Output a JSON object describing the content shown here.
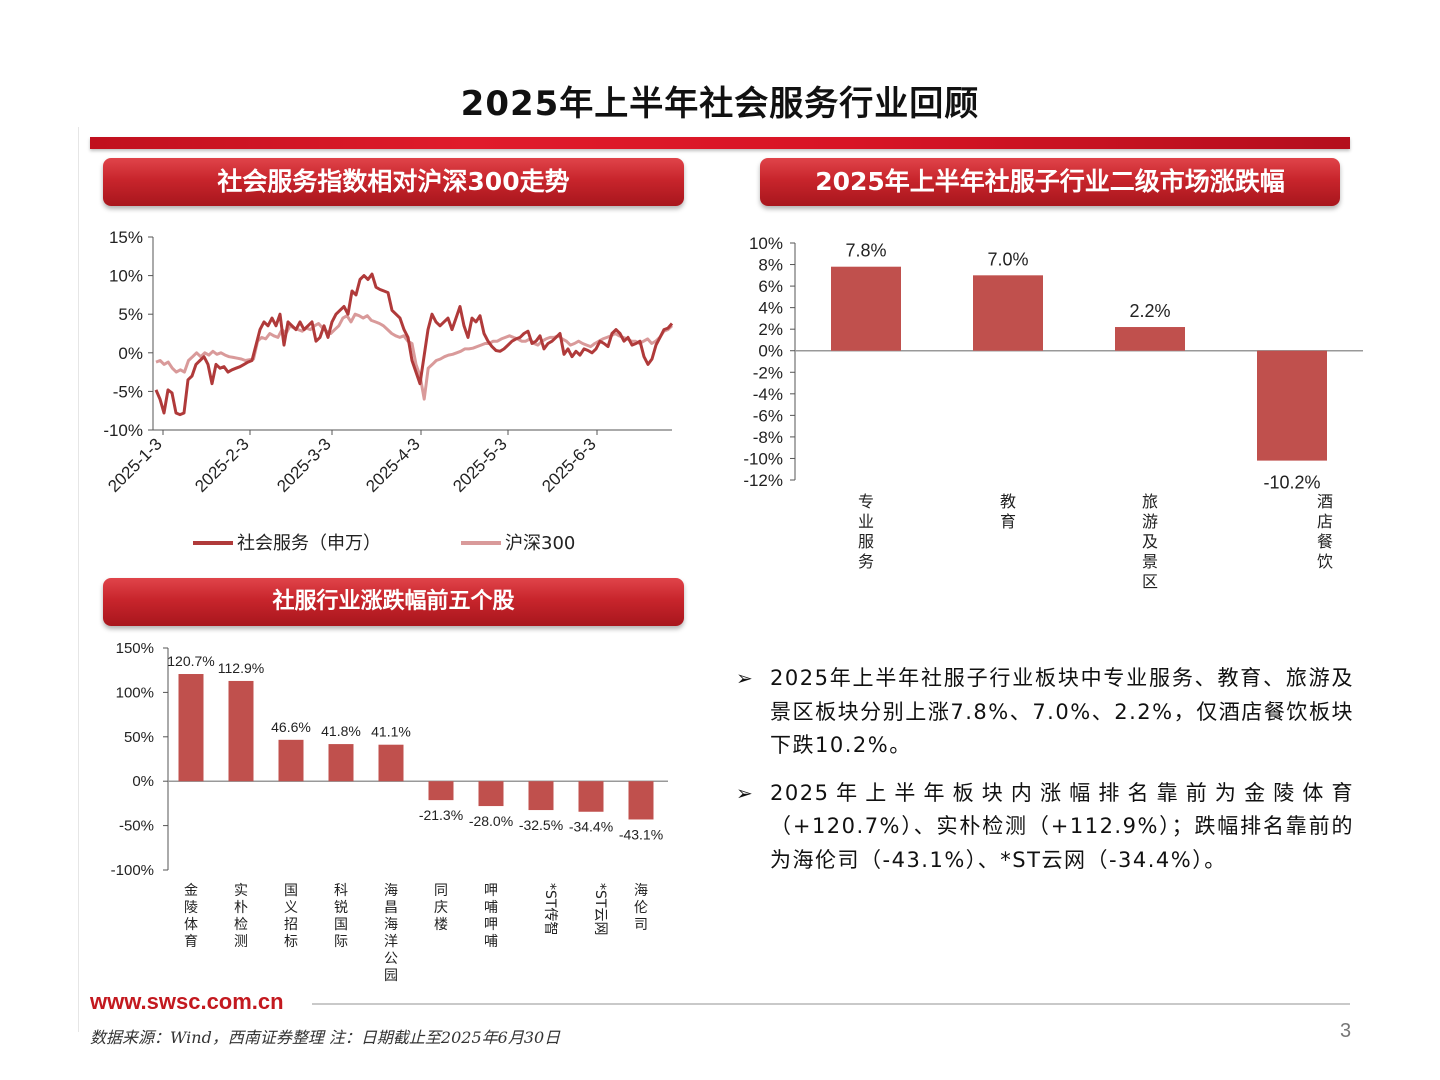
{
  "page_title": "2025年上半年社会服务行业回顾",
  "sections": {
    "index_trend": "社会服务指数相对沪深300走势",
    "sub_industry": "2025年上半年社服子行业二级市场涨跌幅",
    "top_stocks": "社服行业涨跌幅前五个股"
  },
  "chart_data": [
    {
      "type": "line",
      "y_ticks": [
        "15%",
        "10%",
        "5%",
        "0%",
        "-5%",
        "-10%"
      ],
      "ylim": [
        -10,
        15
      ],
      "x_ticks": [
        "2025-1-3",
        "2025-2-3",
        "2025-3-3",
        "2025-4-3",
        "2025-5-3",
        "2025-6-3"
      ],
      "series": [
        {
          "name": "社会服务（申万）",
          "color": "#b03a3a",
          "values": [
            -4.8,
            -6,
            -7.8,
            -4.8,
            -5.2,
            -7.8,
            -8,
            -7.8,
            -3.5,
            -3,
            -1.5,
            -1,
            -0.5,
            -1.5,
            -4,
            -1.5,
            -2,
            -1.8,
            -2.5,
            -2.2,
            -2,
            -1.8,
            -1.5,
            -1.2,
            -1,
            1,
            3,
            4,
            3.5,
            4.5,
            3.5,
            5,
            1,
            4,
            3.5,
            3,
            4,
            3,
            3.5,
            4,
            1.5,
            2,
            3.5,
            2,
            4,
            5,
            5.5,
            6,
            5,
            8,
            7.5,
            9.5,
            10,
            9.5,
            10.2,
            8.5,
            8.2,
            8,
            7.8,
            5.5,
            5,
            4.5,
            3,
            2,
            -1,
            -2.5,
            -4,
            -0.5,
            3,
            5,
            4,
            3.5,
            4,
            4.5,
            3,
            4.5,
            6,
            3.5,
            2,
            4.5,
            4,
            4.8,
            2.5,
            1.5,
            0.8,
            0.3,
            0.2,
            0.5,
            1,
            1.5,
            1.8,
            2,
            2.5,
            2.8,
            1.2,
            1.5,
            2.2,
            0.5,
            1.2,
            1.5,
            2,
            2.5,
            -0.2,
            0.5,
            -0.5,
            0.2,
            -0.3,
            0.5,
            0.3,
            0,
            0.5,
            1.5,
            1.2,
            0.8,
            2.5,
            3,
            2.5,
            1.5,
            2,
            1,
            1.2,
            1.5,
            -0.5,
            -1.5,
            -0.8,
            1,
            2,
            3,
            3.2,
            3.8
          ]
        },
        {
          "name": "沪深300",
          "color": "#d99a9a",
          "values": [
            -1.2,
            -1,
            -1.5,
            -1.2,
            -2,
            -2.5,
            -2.2,
            -2.5,
            -1,
            -0.5,
            0,
            -0.5,
            0,
            -0.3,
            0.2,
            -0.2,
            0,
            -0.3,
            -0.5,
            -0.6,
            -0.7,
            -0.8,
            -1,
            -0.9,
            -0.8,
            1.5,
            2,
            1.8,
            2.5,
            2.2,
            2,
            3,
            2.5,
            3.5,
            3.2,
            3,
            2.8,
            3.2,
            3,
            3.5,
            3.8,
            3.2,
            2.8,
            2.5,
            3,
            3.5,
            4.5,
            4.8,
            4,
            5,
            4.8,
            4.5,
            4.8,
            4.2,
            4,
            3.8,
            3.5,
            3,
            2.5,
            2.2,
            2,
            2.2,
            1.5,
            1.2,
            -1.5,
            -3,
            -6,
            -2,
            -1.5,
            -1,
            -0.8,
            -0.5,
            -0.3,
            -0.2,
            0,
            0.2,
            0.5,
            0.5,
            0.6,
            0.8,
            1,
            1.2,
            1.2,
            1.5,
            1.5,
            1.8,
            2,
            2.2,
            2,
            1.8,
            1.5,
            1.5,
            1.8,
            1.2,
            1,
            1.5,
            1.8,
            2,
            2,
            2.2,
            1.8,
            1.5,
            1,
            1.2,
            1.5,
            1.2,
            1,
            0.8,
            1.2,
            1.5,
            1.8,
            2,
            2.2,
            2.5,
            2.2,
            2,
            1.8,
            1.5,
            1.5,
            1.2,
            1.5,
            1.8,
            1.2,
            1.5,
            2,
            2.8,
            3,
            3.5
          ]
        }
      ],
      "legend_position": "bottom"
    },
    {
      "type": "bar",
      "categories": [
        "专业服务",
        "教育",
        "旅游及景区",
        "酒店餐饮"
      ],
      "values": [
        7.8,
        7.0,
        2.2,
        -10.2
      ],
      "labels": [
        "7.8%",
        "7.0%",
        "2.2%",
        "-10.2%"
      ],
      "y_ticks": [
        "10%",
        "8%",
        "6%",
        "4%",
        "2%",
        "0%",
        "-2%",
        "-4%",
        "-6%",
        "-8%",
        "-10%",
        "-12%"
      ],
      "ylim": [
        -12,
        10
      ],
      "color": "#c0504d"
    },
    {
      "type": "bar",
      "categories": [
        "金陵体育",
        "实朴检测",
        "国义招标",
        "科锐国际",
        "海昌海洋公园",
        "同庆楼",
        "呷哺呷哺",
        "*ST传智",
        "*ST云网",
        "海伦司"
      ],
      "values": [
        120.7,
        112.9,
        46.6,
        41.8,
        41.1,
        -21.3,
        -28.0,
        -32.5,
        -34.4,
        -43.1
      ],
      "labels": [
        "120.7%",
        "112.9%",
        "46.6%",
        "41.8%",
        "41.1%",
        "-21.3%",
        "-28.0%",
        "-32.5%",
        "-34.4%",
        "-43.1%"
      ],
      "y_ticks": [
        "150%",
        "100%",
        "50%",
        "0%",
        "-50%",
        "-100%"
      ],
      "ylim": [
        -100,
        150
      ],
      "color": "#c0504d"
    }
  ],
  "bullets": [
    "2025年上半年社服子行业板块中专业服务、教育、旅游及景区板块分别上涨7.8%、7.0%、2.2%，仅酒店餐饮板块下跌10.2%。",
    "2025年上半年板块内涨幅排名靠前为金陵体育（+120.7%）、实朴检测（+112.9%）；跌幅排名靠前的为海伦司（-43.1%）、*ST云网（-34.4%）。"
  ],
  "bullet_mark": "➢",
  "footer": {
    "url": "www.swsc.com.cn",
    "source": "数据来源：Wind，西南证券整理   注：日期截止至2025年6月30日",
    "page_number": "3"
  }
}
